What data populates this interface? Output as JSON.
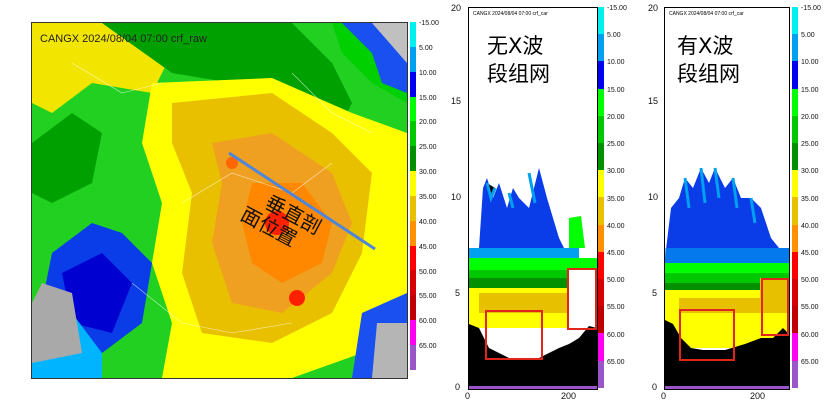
{
  "map": {
    "title": "CANGX 2024/08/04 07:00 crf_raw",
    "annotation_line1": "垂直剖",
    "annotation_line2": "面位置"
  },
  "colorbar": {
    "labels": [
      "-15.00",
      "5.00",
      "10.00",
      "15.00",
      "20.00",
      "25.00",
      "30.00",
      "35.00",
      "40.00",
      "45.00",
      "50.00",
      "55.00",
      "60.00",
      "65.00"
    ],
    "colors": [
      "#00f0f0",
      "#00a0f0",
      "#0000f0",
      "#00ff00",
      "#00c800",
      "#009000",
      "#ffff00",
      "#e7c000",
      "#ff9000",
      "#ff0000",
      "#d60000",
      "#c00000",
      "#ff00f0",
      "#9955c9"
    ]
  },
  "profiles": [
    {
      "title": "CANGX 2024/08/04 07:00 crf_car",
      "label_line1": "无X波",
      "label_line2": "段组网",
      "y_ticks": [
        "20",
        "15",
        "10",
        "5",
        "0"
      ],
      "x_ticks": [
        "0",
        "200"
      ]
    },
    {
      "title": "CANGX 2024/08/04 07:00 crf_car",
      "label_line1": "有X波",
      "label_line2": "段组网",
      "y_ticks": [
        "20",
        "15",
        "10",
        "5",
        "0"
      ],
      "x_ticks": [
        "0",
        "200"
      ]
    }
  ],
  "colors": {
    "outline": "#e0251b",
    "section_line": "#4f86d9"
  }
}
